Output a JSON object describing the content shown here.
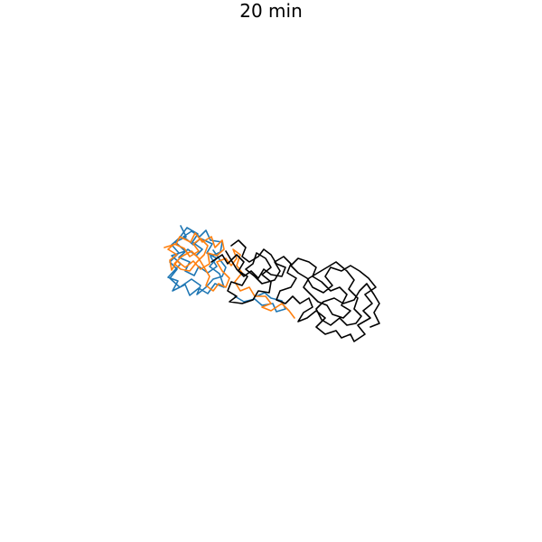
{
  "title": "20 min",
  "colors": {
    "chain-a": "#1f77b4",
    "chain-b": "#ff7f0e",
    "chain-c": "#000000"
  }
}
